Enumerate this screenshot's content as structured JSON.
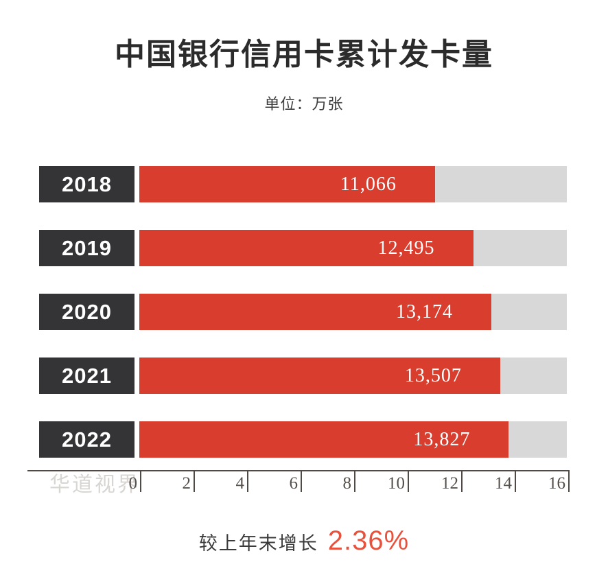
{
  "header": {
    "title": "中国银行信用卡累计发卡量",
    "subtitle": "单位：万张"
  },
  "watermark": "华道视界",
  "footer": {
    "growth_label": "较上年末增长",
    "growth_value": "2.36%"
  },
  "chart_data": {
    "type": "bar",
    "orientation": "horizontal",
    "title": "中国银行信用卡累计发卡量",
    "unit": "万张",
    "categories": [
      "2018",
      "2019",
      "2020",
      "2021",
      "2022"
    ],
    "values": [
      11066,
      12495,
      13174,
      13507,
      13827
    ],
    "value_labels": [
      "11,066",
      "12,495",
      "13,174",
      "13,507",
      "13,827"
    ],
    "xlim": [
      0,
      16000
    ],
    "axis_ticks": [
      "0",
      "2",
      "4",
      "6",
      "8",
      "10",
      "12",
      "14",
      "16"
    ],
    "axis_tick_unit_per_label": 1000,
    "grid": false,
    "legend": false,
    "annotations": [
      "较上年末增长 2.36%"
    ],
    "colors": {
      "bar_fill": "#d93d2e",
      "bar_track": "#d8d8d8",
      "year_box": "#343437",
      "axis": "#4f4a45",
      "accent": "#e8523d",
      "watermark": "#d8d6d3"
    }
  }
}
